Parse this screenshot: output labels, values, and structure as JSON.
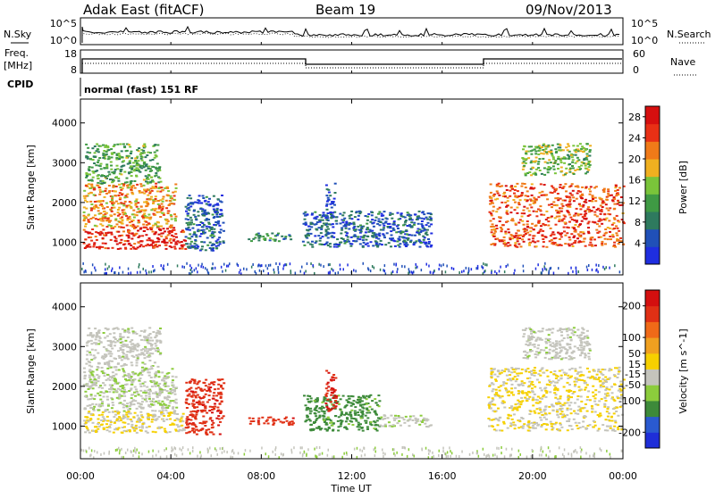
{
  "header": {
    "station": "Adak East (fitACF)",
    "beam": "Beam 19",
    "date": "09/Nov/2013"
  },
  "noise_panel": {
    "left_label": "N.Sky",
    "right_label": "N.Search",
    "left_ticks": [
      "10^5",
      "10^0"
    ],
    "right_ticks": [
      "10^5",
      "10^0"
    ]
  },
  "freq_panel": {
    "left_label_1": "Freq.",
    "left_label_2": "[MHz]",
    "right_label": "Nave",
    "left_ticks": [
      "18",
      "8"
    ],
    "right_ticks": [
      "60",
      "0"
    ]
  },
  "cpid": {
    "label": "CPID",
    "text": "normal (fast) 151 RF"
  },
  "chart_data": [
    {
      "type": "heatmap",
      "title": "",
      "xlabel": "",
      "ylabel": "Slant Range [km]",
      "x_ticks": [
        "00:00",
        "04:00",
        "08:00",
        "12:00",
        "16:00",
        "20:00",
        "00:00"
      ],
      "y_ticks": [
        1000,
        2000,
        3000,
        4000
      ],
      "ylim": [
        180,
        4600
      ],
      "xlim_hours": [
        0,
        24
      ],
      "colorbar": {
        "label": "Power [dB]",
        "ticks": [
          4,
          8,
          12,
          16,
          20,
          24,
          28
        ],
        "range": [
          0,
          30
        ],
        "colors": [
          "#1f2ee0",
          "#2050b8",
          "#2e7a5e",
          "#3f9a44",
          "#7ac43a",
          "#f0b020",
          "#f07a18",
          "#e83015",
          "#d60f0f"
        ]
      },
      "echo_regions": [
        {
          "t": [
            0.1,
            4.6
          ],
          "r": [
            850,
            1400
          ],
          "level": 27
        },
        {
          "t": [
            0.1,
            4.2
          ],
          "r": [
            1400,
            2500
          ],
          "level": 20
        },
        {
          "t": [
            0.2,
            3.5
          ],
          "r": [
            2500,
            3500
          ],
          "level": 12
        },
        {
          "t": [
            4.6,
            6.3
          ],
          "r": [
            800,
            2200
          ],
          "level": 6
        },
        {
          "t": [
            7.4,
            9.4
          ],
          "r": [
            1050,
            1250
          ],
          "level": 10
        },
        {
          "t": [
            9.8,
            15.5
          ],
          "r": [
            900,
            1800
          ],
          "level": 6
        },
        {
          "t": [
            10.8,
            11.3
          ],
          "r": [
            1400,
            2500
          ],
          "level": 5
        },
        {
          "t": [
            18.0,
            24.0
          ],
          "r": [
            900,
            2500
          ],
          "level": 24
        },
        {
          "t": [
            19.5,
            22.5
          ],
          "r": [
            2700,
            3500
          ],
          "level": 14
        }
      ]
    },
    {
      "type": "heatmap",
      "title": "",
      "xlabel": "Time UT",
      "ylabel": "Slant Range [km]",
      "x_ticks": [
        "00:00",
        "04:00",
        "08:00",
        "12:00",
        "16:00",
        "20:00",
        "00:00"
      ],
      "y_ticks": [
        1000,
        2000,
        3000,
        4000
      ],
      "ylim": [
        180,
        4600
      ],
      "xlim_hours": [
        0,
        24
      ],
      "colorbar": {
        "label": "Velocity [m s^-1]",
        "ticks": [
          200,
          100,
          50,
          15,
          -15,
          -50,
          -100,
          -200
        ],
        "range": [
          -250,
          250
        ],
        "colors": [
          "#1e2ed8",
          "#2a5ad0",
          "#3d8a3a",
          "#8ccc3c",
          "#c4c4bc",
          "#f6d000",
          "#f0a020",
          "#f06a18",
          "#e03015",
          "#d40f0f"
        ]
      },
      "echo_regions": [
        {
          "t": [
            0.1,
            4.6
          ],
          "r": [
            850,
            1400
          ],
          "level": 0
        },
        {
          "t": [
            0.1,
            4.2
          ],
          "r": [
            1400,
            2500
          ],
          "level": -40
        },
        {
          "t": [
            0.2,
            3.5
          ],
          "r": [
            2500,
            3500
          ],
          "level": -30
        },
        {
          "t": [
            4.6,
            6.3
          ],
          "r": [
            800,
            2200
          ],
          "level": 180
        },
        {
          "t": [
            7.4,
            9.4
          ],
          "r": [
            1050,
            1250
          ],
          "level": 180
        },
        {
          "t": [
            9.8,
            13.2
          ],
          "r": [
            900,
            1800
          ],
          "level": -120
        },
        {
          "t": [
            10.8,
            11.3
          ],
          "r": [
            1400,
            2500
          ],
          "level": 200
        },
        {
          "t": [
            13.2,
            15.5
          ],
          "r": [
            1000,
            1300
          ],
          "level": -40
        },
        {
          "t": [
            18.0,
            24.0
          ],
          "r": [
            900,
            2500
          ],
          "level": 0
        },
        {
          "t": [
            19.5,
            22.5
          ],
          "r": [
            2700,
            3500
          ],
          "level": -30
        }
      ]
    }
  ]
}
